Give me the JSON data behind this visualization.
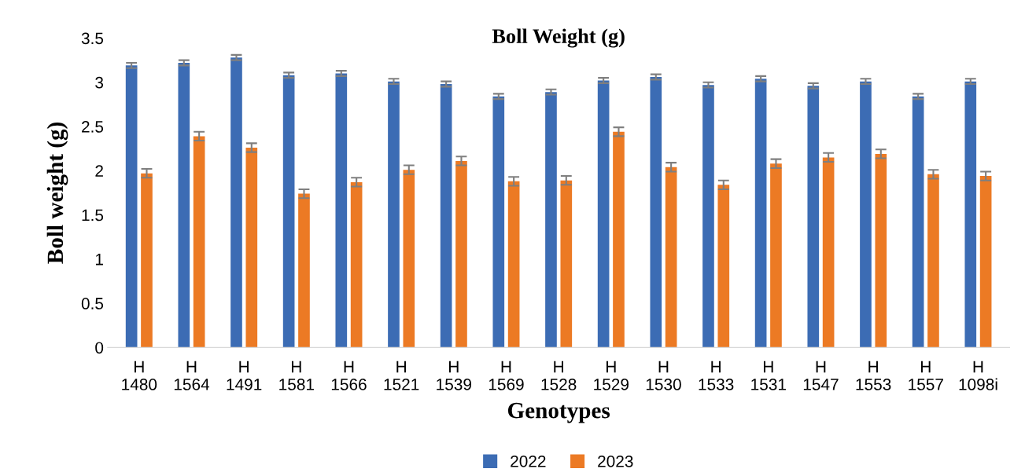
{
  "chart_data": {
    "type": "bar",
    "title": "Boll Weight (g)",
    "xlabel": "Genotypes",
    "ylabel": "Boll weight (g)",
    "categories": [
      "H\n1480",
      "H\n1564",
      "H\n1491",
      "H\n1581",
      "H\n1566",
      "H\n1521",
      "H\n1539",
      "H\n1569",
      "H\n1528",
      "H\n1529",
      "H\n1530",
      "H\n1533",
      "H\n1531",
      "H\n1547",
      "H\n1553",
      "H\n1557",
      "H\n1098i"
    ],
    "series": [
      {
        "name": "2022",
        "color": "#3c6cb4",
        "values": [
          3.19,
          3.22,
          3.28,
          3.08,
          3.1,
          3.01,
          2.98,
          2.84,
          2.89,
          3.02,
          3.06,
          2.97,
          3.04,
          2.96,
          3.01,
          2.84,
          3.01
        ],
        "errors": [
          0.03,
          0.03,
          0.03,
          0.03,
          0.03,
          0.03,
          0.03,
          0.03,
          0.03,
          0.03,
          0.03,
          0.03,
          0.03,
          0.03,
          0.03,
          0.03,
          0.03
        ]
      },
      {
        "name": "2023",
        "color": "#ec7a24",
        "values": [
          1.97,
          2.39,
          2.26,
          1.74,
          1.87,
          2.01,
          2.11,
          1.88,
          1.89,
          2.44,
          2.04,
          1.84,
          2.08,
          2.15,
          2.19,
          1.96,
          1.94
        ],
        "errors": [
          0.05,
          0.05,
          0.05,
          0.05,
          0.05,
          0.05,
          0.05,
          0.05,
          0.05,
          0.05,
          0.05,
          0.05,
          0.05,
          0.05,
          0.05,
          0.05,
          0.05
        ]
      }
    ],
    "ylim": [
      0,
      3.5
    ],
    "yticks": [
      0,
      0.5,
      1,
      1.5,
      2,
      2.5,
      3,
      3.5
    ],
    "grid": false,
    "legend": "bottom"
  }
}
